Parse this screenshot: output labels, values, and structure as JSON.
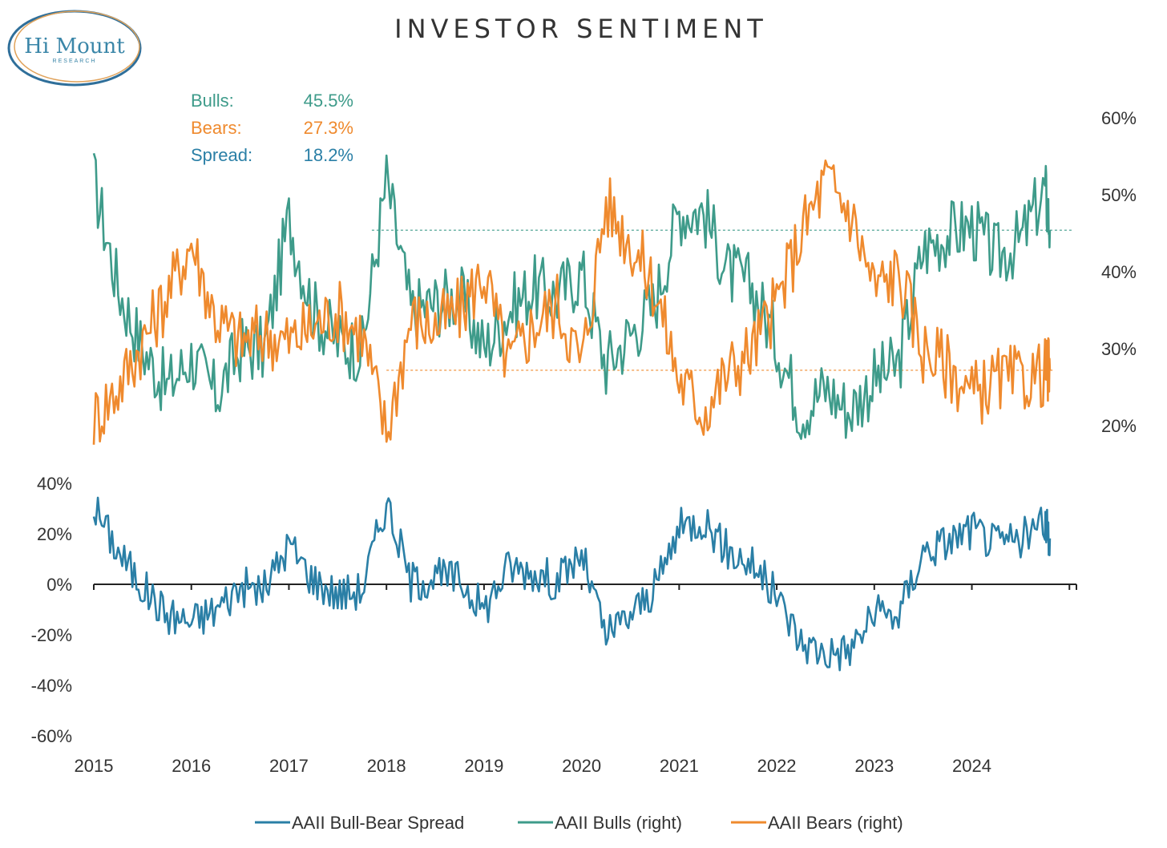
{
  "logo": {
    "name": "Hi Mount",
    "sub": "RESEARCH"
  },
  "stats": [
    {
      "label": "Bulls:",
      "value": "45.5%",
      "color": "#3e9b8a"
    },
    {
      "label": "Bears:",
      "value": "27.3%",
      "color": "#ef8a2e"
    },
    {
      "label": "Spread:",
      "value": "18.2%",
      "color": "#2a7fa6"
    }
  ],
  "colors": {
    "bulls": "#3e9b8a",
    "bears": "#ef8a2e",
    "spread": "#2a7fa6",
    "axis": "#222222"
  },
  "chart_data": {
    "title": "INVESTOR SENTIMENT",
    "type": "line",
    "x_range": [
      2015.0,
      2024.85
    ],
    "x_ticks": [
      "2015",
      "2016",
      "2017",
      "2018",
      "2019",
      "2020",
      "2021",
      "2022",
      "2023",
      "2024"
    ],
    "upper_panel": {
      "y_axis_side": "right",
      "y_range": [
        0.14,
        0.62
      ],
      "y_ticks": [
        "20%",
        "30%",
        "40%",
        "50%",
        "60%"
      ],
      "y_tick_values": [
        0.2,
        0.3,
        0.4,
        0.5,
        0.6
      ],
      "reference_lines": {
        "bulls": 0.455,
        "bears": 0.273,
        "bulls_start": 2017.85,
        "bears_start": 2018.0
      },
      "series": [
        {
          "name": "AAII Bulls (right)",
          "x": [
            2015.0,
            2015.25,
            2015.5,
            2015.75,
            2016.0,
            2016.25,
            2016.5,
            2016.75,
            2017.0,
            2017.25,
            2017.5,
            2017.75,
            2018.0,
            2018.25,
            2018.5,
            2018.75,
            2019.0,
            2019.25,
            2019.5,
            2019.75,
            2020.0,
            2020.25,
            2020.5,
            2020.75,
            2021.0,
            2021.25,
            2021.5,
            2021.75,
            2022.0,
            2022.25,
            2022.5,
            2022.75,
            2023.0,
            2023.25,
            2023.5,
            2023.75,
            2024.0,
            2024.25,
            2024.5,
            2024.75,
            2024.8
          ],
          "values": [
            0.52,
            0.38,
            0.3,
            0.25,
            0.29,
            0.24,
            0.3,
            0.3,
            0.47,
            0.35,
            0.31,
            0.3,
            0.52,
            0.35,
            0.36,
            0.37,
            0.3,
            0.35,
            0.38,
            0.37,
            0.4,
            0.28,
            0.32,
            0.36,
            0.48,
            0.48,
            0.4,
            0.38,
            0.31,
            0.22,
            0.25,
            0.22,
            0.26,
            0.28,
            0.43,
            0.45,
            0.46,
            0.42,
            0.44,
            0.51,
            0.455
          ]
        },
        {
          "name": "AAII Bears (right)",
          "x": [
            2015.0,
            2015.25,
            2015.5,
            2015.75,
            2016.0,
            2016.25,
            2016.5,
            2016.75,
            2017.0,
            2017.25,
            2017.5,
            2017.75,
            2018.0,
            2018.25,
            2018.5,
            2018.75,
            2019.0,
            2019.25,
            2019.5,
            2019.75,
            2020.0,
            2020.25,
            2020.5,
            2020.75,
            2021.0,
            2021.25,
            2021.5,
            2021.75,
            2022.0,
            2022.25,
            2022.5,
            2022.75,
            2023.0,
            2023.25,
            2023.5,
            2023.75,
            2024.0,
            2024.25,
            2024.5,
            2024.75,
            2024.8
          ],
          "values": [
            0.21,
            0.25,
            0.31,
            0.37,
            0.44,
            0.34,
            0.31,
            0.32,
            0.31,
            0.33,
            0.35,
            0.32,
            0.19,
            0.34,
            0.33,
            0.35,
            0.4,
            0.28,
            0.33,
            0.36,
            0.28,
            0.49,
            0.44,
            0.38,
            0.26,
            0.22,
            0.27,
            0.3,
            0.36,
            0.45,
            0.52,
            0.48,
            0.38,
            0.4,
            0.3,
            0.28,
            0.24,
            0.26,
            0.26,
            0.27,
            0.273
          ]
        }
      ]
    },
    "lower_panel": {
      "y_axis_side": "left",
      "y_range": [
        -0.6,
        0.45
      ],
      "y_ticks": [
        "40%",
        "20%",
        "0%",
        "-20%",
        "-40%",
        "-60%"
      ],
      "y_tick_values": [
        0.4,
        0.2,
        0.0,
        -0.2,
        -0.4,
        -0.6
      ],
      "series": [
        {
          "name": "AAII Bull-Bear Spread",
          "x": [
            2015.0,
            2015.25,
            2015.5,
            2015.75,
            2016.0,
            2016.25,
            2016.5,
            2016.75,
            2017.0,
            2017.25,
            2017.5,
            2017.75,
            2018.0,
            2018.25,
            2018.5,
            2018.75,
            2019.0,
            2019.25,
            2019.5,
            2019.75,
            2020.0,
            2020.25,
            2020.5,
            2020.75,
            2021.0,
            2021.25,
            2021.5,
            2021.75,
            2022.0,
            2022.25,
            2022.5,
            2022.75,
            2023.0,
            2023.25,
            2023.5,
            2023.75,
            2024.0,
            2024.25,
            2024.5,
            2024.75,
            2024.8
          ],
          "values": [
            0.31,
            0.13,
            -0.01,
            -0.12,
            -0.15,
            -0.1,
            -0.01,
            -0.02,
            0.16,
            0.02,
            -0.04,
            -0.02,
            0.33,
            0.01,
            0.03,
            0.02,
            -0.1,
            0.07,
            0.05,
            0.01,
            0.12,
            -0.21,
            -0.12,
            -0.02,
            0.22,
            0.26,
            0.13,
            0.08,
            -0.05,
            -0.23,
            -0.27,
            -0.26,
            -0.12,
            -0.12,
            0.13,
            0.17,
            0.22,
            0.16,
            0.18,
            0.24,
            0.182
          ]
        }
      ]
    },
    "legend": {
      "position": "bottom",
      "entries": [
        {
          "label": "AAII Bull-Bear Spread",
          "color": "#2a7fa6"
        },
        {
          "label": "AAII Bulls (right)",
          "color": "#3e9b8a"
        },
        {
          "label": "AAII Bears (right)",
          "color": "#ef8a2e"
        }
      ]
    }
  }
}
